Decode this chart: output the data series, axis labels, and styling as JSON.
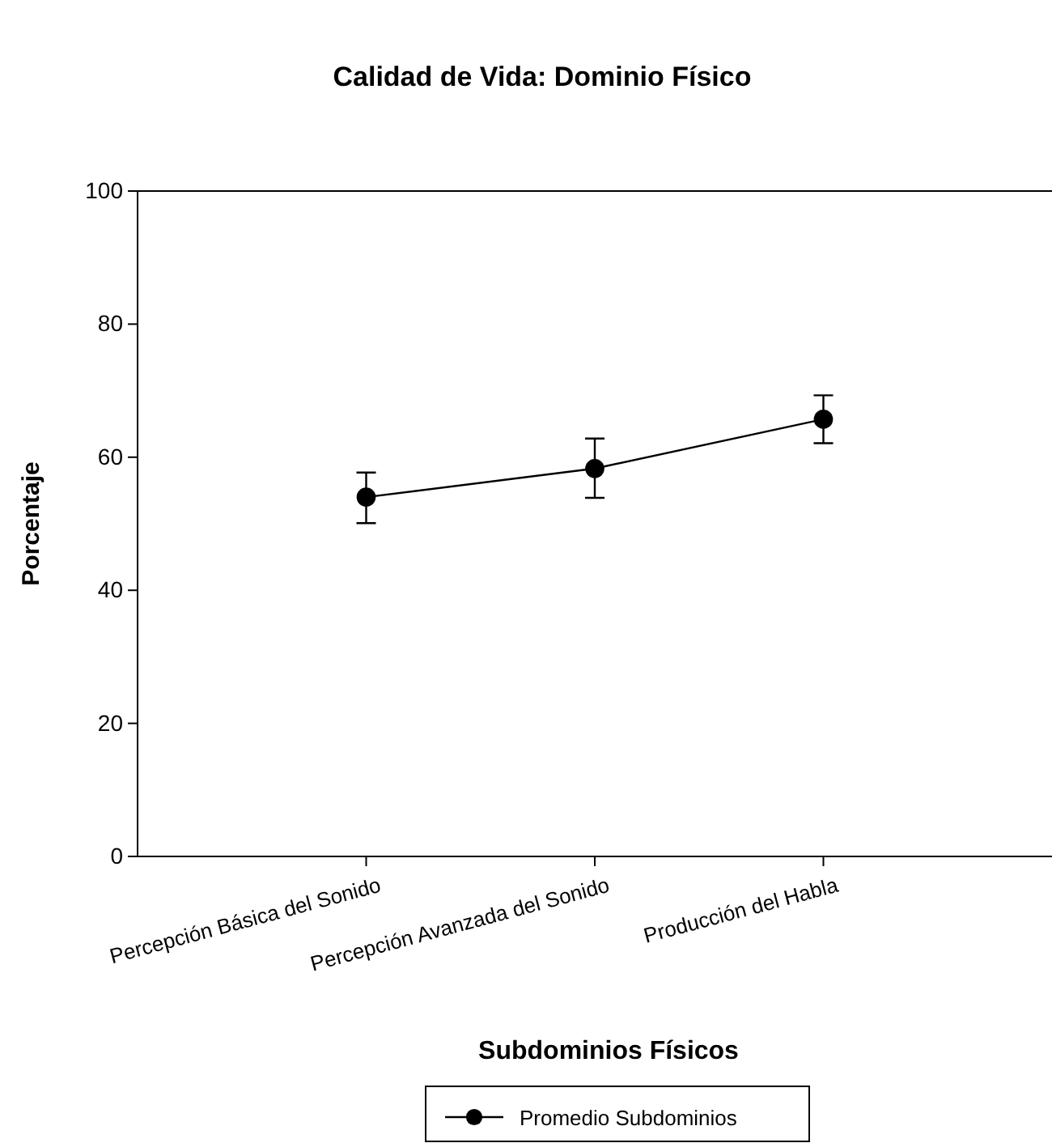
{
  "chart_data": {
    "type": "line",
    "title": "Calidad de Vida: Dominio Físico",
    "xlabel": "Subdominios Físicos",
    "ylabel": "Porcentaje",
    "categories": [
      "Percepción Básica del Sonido",
      "Percepción Avanzada del Sonido",
      "Producción del Habla"
    ],
    "series": [
      {
        "name": "Promedio Subdominios",
        "color": "#000000",
        "values": [
          54.0,
          58.3,
          65.7
        ],
        "errors": [
          [
            50.1,
            57.7
          ],
          [
            53.9,
            62.8
          ],
          [
            62.1,
            69.3
          ]
        ]
      }
    ],
    "ylim": [
      0,
      100
    ],
    "yticks": [
      0,
      20,
      40,
      60,
      80,
      100
    ],
    "marker": "circle",
    "line_style": "solid",
    "grid": false,
    "legend": "bottom"
  }
}
